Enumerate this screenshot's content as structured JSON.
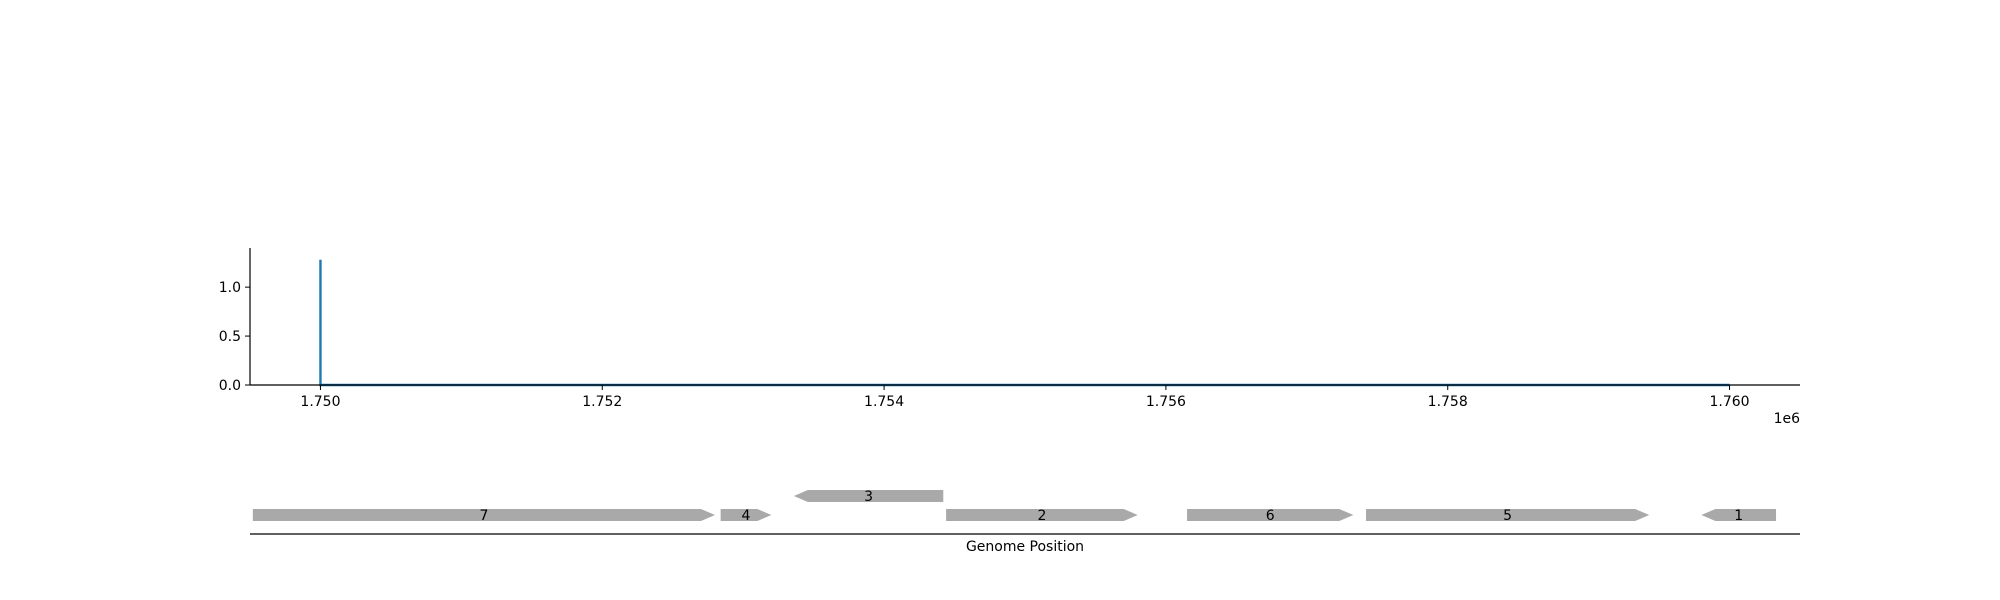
{
  "chart_data": [
    {
      "type": "line",
      "title": "",
      "xlabel": "",
      "ylabel": "",
      "x_offset_label": "1e6",
      "xlim": [
        1749500,
        1760500
      ],
      "ylim": [
        0,
        1.4
      ],
      "xticks": [
        1750000,
        1752000,
        1754000,
        1756000,
        1758000,
        1760000
      ],
      "xtick_labels": [
        "1.750",
        "1.752",
        "1.754",
        "1.756",
        "1.758",
        "1.760"
      ],
      "yticks": [
        0,
        0.5,
        1.0
      ],
      "ytick_labels": [
        "0.0",
        "0.5",
        "1.0"
      ],
      "grid": false,
      "series": [
        {
          "color": "#1f77b4",
          "x": [
            1750000,
            1750000,
            1750000,
            1760000
          ],
          "y": [
            0,
            1.28,
            0,
            0
          ]
        }
      ]
    },
    {
      "type": "gene-map",
      "xlabel": "Genome Position",
      "xlim": [
        1749500,
        1760500
      ],
      "color": "#a9a9a9",
      "genes": [
        {
          "label": "7",
          "start": 1749520,
          "end": 1752800,
          "strand": 1,
          "row": 0
        },
        {
          "label": "4",
          "start": 1752840,
          "end": 1753200,
          "strand": 1,
          "row": 0
        },
        {
          "label": "3",
          "start": 1753360,
          "end": 1754420,
          "strand": -1,
          "row": 1
        },
        {
          "label": "2",
          "start": 1754440,
          "end": 1755800,
          "strand": 1,
          "row": 0
        },
        {
          "label": "6",
          "start": 1756150,
          "end": 1757330,
          "strand": 1,
          "row": 0
        },
        {
          "label": "5",
          "start": 1757420,
          "end": 1759430,
          "strand": 1,
          "row": 0
        },
        {
          "label": "1",
          "start": 1759800,
          "end": 1760330,
          "strand": -1,
          "row": 0
        }
      ]
    }
  ]
}
